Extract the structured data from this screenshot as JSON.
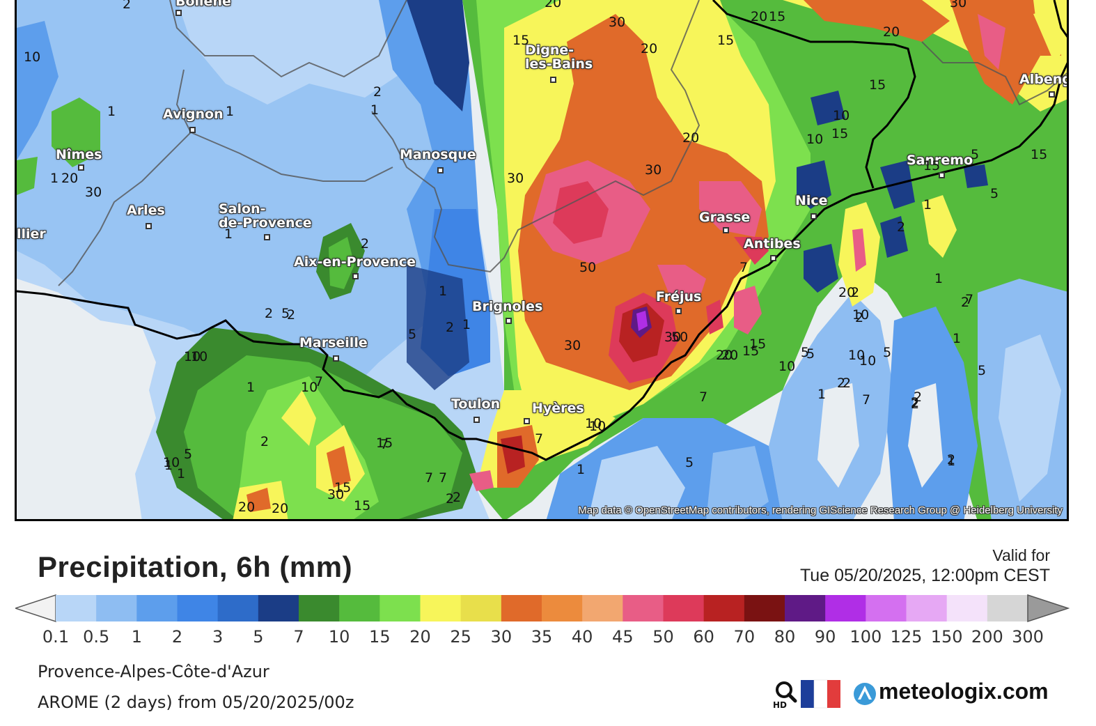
{
  "map": {
    "cities": [
      {
        "id": "bollene",
        "label": "Bollène"
      },
      {
        "id": "avignon",
        "label": "Avignon"
      },
      {
        "id": "nimes",
        "label": "Nîmes"
      },
      {
        "id": "arles",
        "label": "Arles"
      },
      {
        "id": "montpellier",
        "label": "llier"
      },
      {
        "id": "salon",
        "label": "Salon-\nde-Provence"
      },
      {
        "id": "aix",
        "label": "Aix-en-Provence"
      },
      {
        "id": "manosque",
        "label": "Manosque"
      },
      {
        "id": "digne",
        "label": "Digne-\nles-Bains"
      },
      {
        "id": "brignoles",
        "label": "Brignoles"
      },
      {
        "id": "marseille",
        "label": "Marseille"
      },
      {
        "id": "toulon",
        "label": "Toulon"
      },
      {
        "id": "hyeres",
        "label": "Hyères"
      },
      {
        "id": "frejus",
        "label": "Fréjus"
      },
      {
        "id": "grasse",
        "label": "Grasse"
      },
      {
        "id": "antibes",
        "label": "Antibes"
      },
      {
        "id": "nice",
        "label": "Nice"
      },
      {
        "id": "sanremo",
        "label": "Sanremo"
      },
      {
        "id": "albenga",
        "label": "Albeng"
      }
    ],
    "contour_labels": [
      "2",
      "20",
      "30",
      "20",
      "15",
      "20",
      "15",
      "30",
      "15",
      "20",
      "1",
      "2",
      "1",
      "1",
      "15",
      "20",
      "30",
      "30",
      "10",
      "15",
      "10",
      "15",
      "5",
      "1",
      "5",
      "2",
      "1",
      "2",
      "2",
      "2",
      "1",
      "5",
      "2",
      "1",
      "50",
      "30",
      "2",
      "1",
      "2",
      "2",
      "1",
      "30",
      "15",
      "7",
      "20",
      "5",
      "2",
      "50",
      "20",
      "15",
      "10",
      "5",
      "1",
      "2",
      "7",
      "5",
      "2",
      "7",
      "10",
      "7",
      "10",
      "5",
      "1",
      "1",
      "20",
      "30",
      "10",
      "10",
      "7",
      "1",
      "15",
      "7",
      "7",
      "2",
      "5",
      "10",
      "1",
      "10",
      "30",
      "15",
      "20",
      "20",
      "15",
      "5",
      "2",
      "2",
      "1",
      "5",
      "10",
      "7",
      "20",
      "10",
      "7",
      "2",
      "2",
      "10",
      "10",
      "15",
      "1",
      "2"
    ],
    "attribution": "Map data © OpenStreetMap contributors, rendering GIScience Research Group @ Heidelberg University"
  },
  "legend": {
    "title": "Precipitation, 6h (mm)",
    "valid_label": "Valid for",
    "valid_time": "Tue 05/20/2025, 12:00pm CEST",
    "ticks": [
      "0.1",
      "0.5",
      "1",
      "2",
      "3",
      "5",
      "7",
      "10",
      "15",
      "20",
      "25",
      "30",
      "35",
      "40",
      "45",
      "50",
      "60",
      "70",
      "80",
      "90",
      "100",
      "125",
      "150",
      "200",
      "300"
    ],
    "colors": [
      "#b8d6f7",
      "#8ebdf2",
      "#5d9eec",
      "#3f85e6",
      "#2e6cc9",
      "#1b3d86",
      "#3a8a2e",
      "#55bb3d",
      "#7de04e",
      "#f7f55a",
      "#e8df4b",
      "#e06a2a",
      "#ec8b3d",
      "#f2a770",
      "#e85d86",
      "#dd3a5a",
      "#b82222",
      "#7a1212",
      "#5f1a86",
      "#b02ee6",
      "#d470f0",
      "#e6a8f4",
      "#f4e2fa",
      "#d6d6d6"
    ],
    "end_left_color": "#f2f2f2",
    "end_right_color": "#9a9a9a",
    "region": "Provence-Alpes-Côte-d'Azur",
    "model": "AROME (2 days) from 05/20/2025/00z",
    "logo": "meteologix.com",
    "hd_label": "HD"
  }
}
